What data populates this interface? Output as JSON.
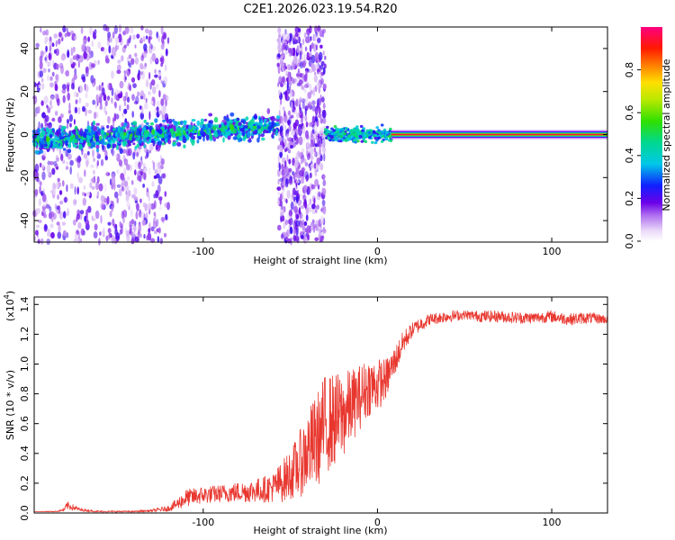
{
  "chart_data": [
    {
      "type": "heatmap",
      "title": "C2E1.2026.023.19.54.R20",
      "xlabel": "Height of straight line (km)",
      "ylabel": "Frequency (Hz)",
      "xlim": [
        -197,
        132
      ],
      "ylim": [
        -50,
        50
      ],
      "xticks": [
        -100,
        0,
        100
      ],
      "xtick_labels": [
        "-100",
        "0",
        "100"
      ],
      "yticks": [
        -40,
        -20,
        0,
        20,
        40
      ],
      "ytick_labels": [
        "-40",
        "-20",
        "0",
        "20",
        "40"
      ],
      "colorbar": {
        "label": "Normalized spectral amplitude",
        "range": [
          0,
          1
        ],
        "ticks": [
          0.0,
          0.2,
          0.4,
          0.6,
          0.8
        ],
        "tick_labels": [
          "0.0",
          "0.2",
          "0.4",
          "0.6",
          "0.8"
        ]
      },
      "features": [
        {
          "name": "scattered noise region",
          "x_range": [
            -197,
            -120
          ],
          "freq_center": 0,
          "amplitude": 0.15
        },
        {
          "name": "drifting carrier",
          "x_range": [
            -197,
            -57
          ],
          "freq_start": -3,
          "freq_end": 4,
          "amplitude": 0.35
        },
        {
          "name": "occultation band",
          "x_range": [
            -57,
            -30
          ],
          "freq_center": 0,
          "amplitude": 0.15
        },
        {
          "name": "carrier transition",
          "x_range": [
            -30,
            8
          ],
          "freq_center": 0,
          "amplitude": 0.4
        },
        {
          "name": "stable carrier",
          "x_range": [
            8,
            132
          ],
          "freq_center": 0,
          "amplitude": 0.95
        }
      ]
    },
    {
      "type": "line",
      "xlabel": "Height of straight line (km)",
      "ylabel": "SNR (10 * v/v)",
      "ylabel_multiplier": "(x10",
      "ylabel_exponent": "4",
      "ylabel_close": ")",
      "xlim": [
        -197,
        132
      ],
      "ylim": [
        0,
        1.45
      ],
      "xticks": [
        -100,
        0,
        100
      ],
      "xtick_labels": [
        "-100",
        "0",
        "100"
      ],
      "yticks": [
        0.0,
        0.2,
        0.4,
        0.6,
        0.8,
        1.0,
        1.2,
        1.4
      ],
      "ytick_labels": [
        "0.0",
        "0.2",
        "0.4",
        "0.6",
        "0.8",
        "1.0",
        "1.2",
        "1.4"
      ],
      "series": [
        {
          "name": "SNR",
          "color": "#e8372f",
          "x": [
            -197,
            -185,
            -180,
            -178,
            -170,
            -160,
            -150,
            -140,
            -130,
            -120,
            -115,
            -110,
            -105,
            -100,
            -90,
            -80,
            -70,
            -60,
            -55,
            -50,
            -45,
            -40,
            -35,
            -30,
            -25,
            -20,
            -15,
            -10,
            -5,
            0,
            5,
            10,
            15,
            20,
            25,
            30,
            40,
            50,
            60,
            70,
            80,
            90,
            100,
            110,
            120,
            132
          ],
          "y": [
            0.01,
            0.01,
            0.02,
            0.05,
            0.02,
            0.01,
            0.01,
            0.01,
            0.015,
            0.03,
            0.06,
            0.1,
            0.11,
            0.12,
            0.13,
            0.14,
            0.15,
            0.17,
            0.21,
            0.26,
            0.32,
            0.42,
            0.48,
            0.6,
            0.62,
            0.65,
            0.72,
            0.78,
            0.85,
            0.86,
            0.9,
            1.02,
            1.15,
            1.23,
            1.27,
            1.3,
            1.32,
            1.33,
            1.32,
            1.32,
            1.31,
            1.31,
            1.32,
            1.3,
            1.31,
            1.3
          ],
          "noise": [
            0.0,
            0.003,
            0.01,
            0.03,
            0.008,
            0.005,
            0.005,
            0.005,
            0.008,
            0.02,
            0.04,
            0.06,
            0.06,
            0.06,
            0.06,
            0.07,
            0.08,
            0.1,
            0.14,
            0.17,
            0.22,
            0.28,
            0.32,
            0.34,
            0.32,
            0.3,
            0.25,
            0.22,
            0.2,
            0.18,
            0.14,
            0.1,
            0.08,
            0.05,
            0.05,
            0.04,
            0.04,
            0.03,
            0.04,
            0.04,
            0.04,
            0.04,
            0.04,
            0.04,
            0.04,
            0.03
          ]
        }
      ]
    }
  ]
}
